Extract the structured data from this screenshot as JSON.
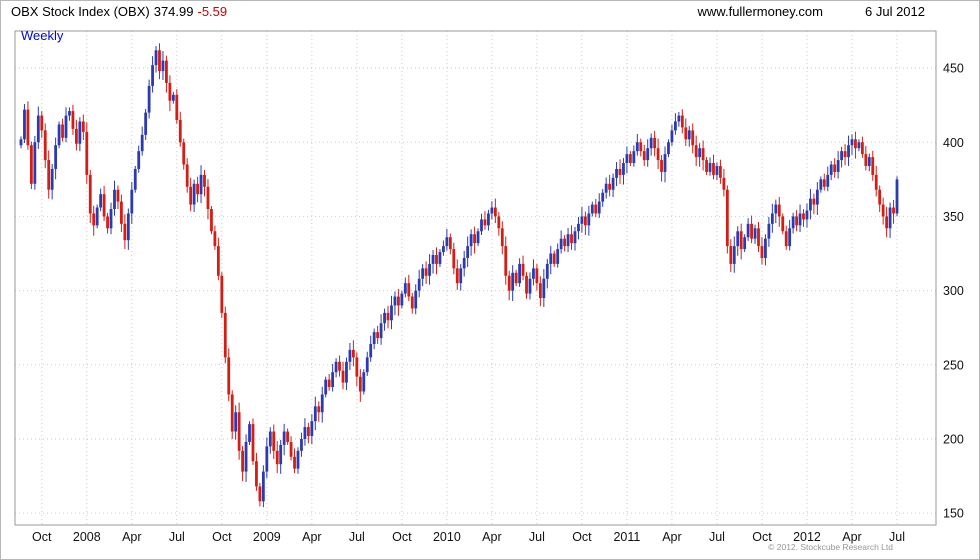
{
  "header": {
    "title": "OBX Stock Index (OBX)",
    "price": "374.99",
    "change": "-5.59",
    "site": "www.fullermoney.com",
    "date": "6 Jul 2012"
  },
  "footer": {
    "copyright": "© 2012. Stockcube Research Ltd"
  },
  "chart_data": {
    "type": "candlestick",
    "timeframe": "Weekly",
    "title": "OBX Stock Index (OBX)",
    "last_price": 374.99,
    "change": -5.59,
    "ylim": [
      142,
      475
    ],
    "y_ticks": [
      150,
      200,
      250,
      300,
      350,
      400,
      450
    ],
    "x_labels": [
      "Oct",
      "2008",
      "Apr",
      "Jul",
      "Oct",
      "2009",
      "Apr",
      "Jul",
      "Oct",
      "2010",
      "Apr",
      "Jul",
      "Oct",
      "2011",
      "Apr",
      "Jul",
      "Oct",
      "2012",
      "Apr",
      "Jul"
    ],
    "x_label_weeks": [
      6,
      19,
      32,
      45,
      58,
      71,
      84,
      97,
      110,
      123,
      136,
      149,
      162,
      175,
      188,
      201,
      214,
      227,
      240,
      253
    ],
    "grid": true,
    "legend_position": "none",
    "up_color": "#2c3ab2",
    "down_color": "#d21e14",
    "grid_color": "#c6cbd2",
    "closes": [
      402,
      422,
      398,
      372,
      400,
      418,
      408,
      388,
      368,
      382,
      398,
      412,
      403,
      418,
      421,
      409,
      399,
      414,
      407,
      378,
      352,
      344,
      356,
      365,
      350,
      342,
      355,
      368,
      360,
      345,
      334,
      352,
      368,
      382,
      394,
      405,
      420,
      438,
      452,
      462,
      448,
      455,
      440,
      428,
      432,
      415,
      400,
      385,
      370,
      358,
      372,
      365,
      378,
      370,
      355,
      340,
      330,
      310,
      285,
      255,
      230,
      205,
      218,
      192,
      178,
      198,
      210,
      185,
      168,
      158,
      178,
      195,
      205,
      192,
      183,
      196,
      205,
      198,
      188,
      180,
      192,
      200,
      208,
      202,
      212,
      222,
      218,
      230,
      240,
      235,
      245,
      252,
      246,
      238,
      252,
      260,
      255,
      242,
      232,
      245,
      255,
      264,
      272,
      268,
      278,
      285,
      280,
      290,
      296,
      290,
      298,
      305,
      296,
      288,
      300,
      308,
      315,
      310,
      318,
      324,
      318,
      326,
      330,
      336,
      328,
      315,
      305,
      315,
      322,
      330,
      338,
      332,
      340,
      348,
      344,
      352,
      356,
      350,
      342,
      330,
      310,
      300,
      312,
      305,
      318,
      310,
      298,
      308,
      315,
      305,
      295,
      308,
      318,
      325,
      318,
      328,
      335,
      330,
      338,
      332,
      340,
      345,
      350,
      344,
      352,
      358,
      352,
      360,
      366,
      372,
      368,
      376,
      382,
      378,
      386,
      392,
      386,
      394,
      400,
      394,
      388,
      396,
      403,
      396,
      388,
      380,
      392,
      400,
      408,
      414,
      418,
      410,
      402,
      408,
      398,
      390,
      396,
      388,
      380,
      386,
      378,
      384,
      376,
      368,
      330,
      318,
      330,
      340,
      328,
      336,
      345,
      335,
      342,
      330,
      322,
      335,
      345,
      352,
      358,
      350,
      340,
      330,
      342,
      350,
      344,
      352,
      348,
      354,
      362,
      358,
      368,
      375,
      370,
      378,
      385,
      380,
      388,
      394,
      390,
      398,
      402,
      396,
      400,
      392,
      384,
      390,
      378,
      368,
      358,
      350,
      342,
      356,
      352,
      374.99
    ]
  }
}
